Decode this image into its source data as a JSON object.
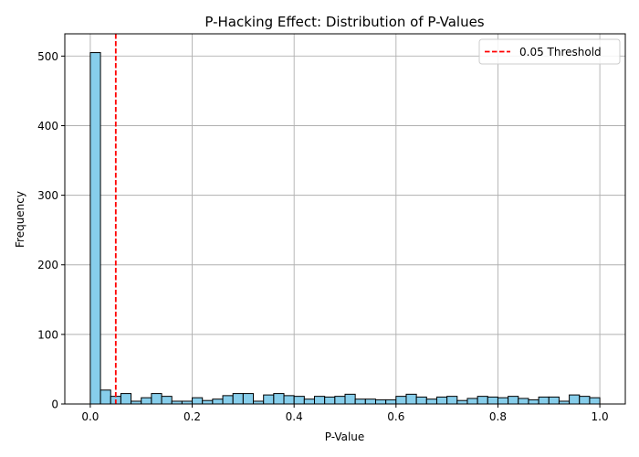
{
  "chart_data": {
    "type": "bar",
    "title": "P-Hacking Effect: Distribution of P-Values",
    "xlabel": "P-Value",
    "ylabel": "Frequency",
    "xlim": [
      -0.05,
      1.05
    ],
    "ylim": [
      0,
      532
    ],
    "grid": true,
    "bin_width": 0.02,
    "bin_start": 0.0,
    "values": [
      505,
      20,
      11,
      15,
      4,
      9,
      15,
      11,
      4,
      4,
      9,
      5,
      7,
      12,
      15,
      15,
      4,
      13,
      15,
      12,
      11,
      7,
      11,
      10,
      11,
      14,
      7,
      7,
      6,
      6,
      11,
      14,
      10,
      7,
      10,
      11,
      5,
      8,
      11,
      10,
      9,
      11,
      8,
      6,
      10,
      10,
      4,
      13,
      11,
      9
    ],
    "bar_color": "#87ceeb",
    "edge_color": "#000000",
    "x_ticks": [
      0.0,
      0.2,
      0.4,
      0.6,
      0.8,
      1.0
    ],
    "x_tick_labels": [
      "0.0",
      "0.2",
      "0.4",
      "0.6",
      "0.8",
      "1.0"
    ],
    "y_ticks": [
      0,
      100,
      200,
      300,
      400,
      500
    ],
    "y_tick_labels": [
      "0",
      "100",
      "200",
      "300",
      "400",
      "500"
    ],
    "threshold": {
      "value": 0.05,
      "label": "0.05 Threshold",
      "color": "#ff0000",
      "style": "dashed"
    },
    "legend_position": "top-right"
  }
}
